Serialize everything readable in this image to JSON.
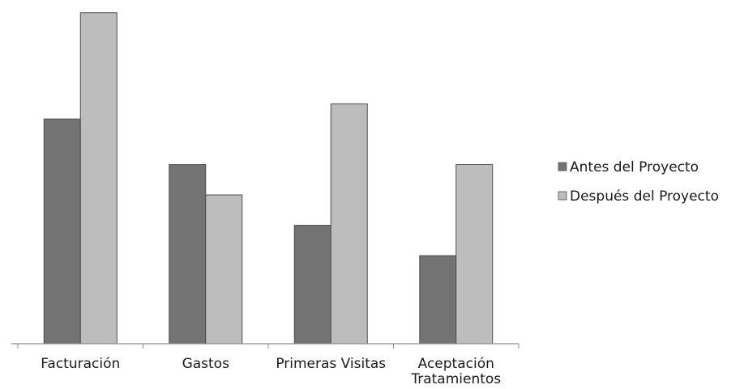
{
  "chart_data": {
    "type": "bar",
    "categories": [
      [
        "Facturación"
      ],
      [
        "Gastos"
      ],
      [
        "Primeras Visitas"
      ],
      [
        "Aceptación",
        "Tratamientos"
      ]
    ],
    "series": [
      {
        "name": "Antes del Proyecto",
        "color": "#737373",
        "values": [
          74,
          59,
          39,
          29
        ]
      },
      {
        "name": "Después del Proyecto",
        "color": "#bdbdbd",
        "values": [
          109,
          49,
          79,
          59
        ]
      }
    ],
    "ylim": [
      0,
      110
    ],
    "grid": false,
    "legend_position": "right",
    "title": "",
    "xlabel": "",
    "ylabel": ""
  }
}
